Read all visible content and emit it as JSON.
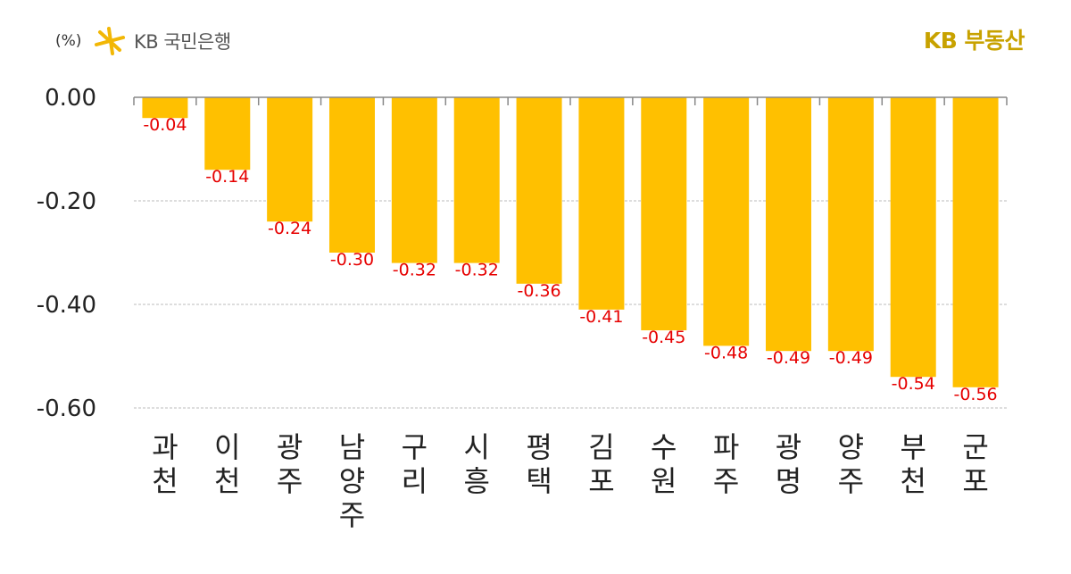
{
  "header": {
    "unit": "(%)",
    "bank_logo_text": "KB 국민은행",
    "brand_text": "KB 부동산"
  },
  "colors": {
    "bar": "#FFC000",
    "label": "#E60000",
    "grid": "#BBBBBB",
    "axis": "#888888",
    "text": "#222222",
    "brand": "#C8A200"
  },
  "chart_data": {
    "type": "bar",
    "categories": [
      "과천",
      "이천",
      "광주",
      "남양주",
      "구리",
      "시흥",
      "평택",
      "김포",
      "수원",
      "파주",
      "광명",
      "양주",
      "부천",
      "군포"
    ],
    "values": [
      -0.04,
      -0.14,
      -0.24,
      -0.3,
      -0.32,
      -0.32,
      -0.36,
      -0.41,
      -0.45,
      -0.48,
      -0.49,
      -0.49,
      -0.54,
      -0.56
    ],
    "value_labels": [
      "-0.04",
      "-0.14",
      "-0.24",
      "-0.30",
      "-0.32",
      "-0.32",
      "-0.36",
      "-0.41",
      "-0.45",
      "-0.48",
      "-0.49",
      "-0.49",
      "-0.54",
      "-0.56"
    ],
    "yticks": [
      0.0,
      -0.2,
      -0.4,
      -0.6
    ],
    "ytick_labels": [
      "0.00",
      "-0.20",
      "-0.40",
      "-0.60"
    ],
    "ylim": [
      -0.6,
      0.0
    ],
    "ylabel": "(%)",
    "xlabel": "",
    "grid": true,
    "legend": "none"
  }
}
